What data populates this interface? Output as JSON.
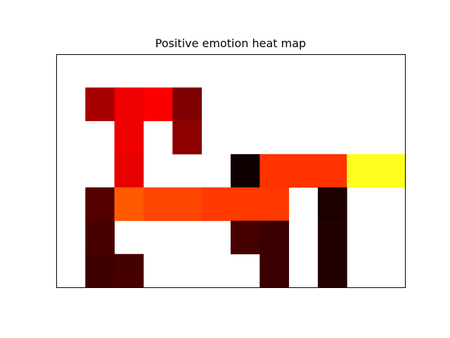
{
  "chart_data": {
    "type": "heatmap",
    "title": "Positive emotion heat map",
    "xlabel": "",
    "ylabel": "",
    "show_axes_ticks": false,
    "grid": false,
    "colormap": "hot",
    "rows": 7,
    "cols": 12,
    "value_range": [
      0,
      1
    ],
    "cells": [
      [
        null,
        null,
        null,
        null,
        null,
        null,
        null,
        null,
        null,
        null,
        null,
        null
      ],
      [
        null,
        0.24,
        0.34,
        0.36,
        0.18,
        null,
        null,
        null,
        null,
        null,
        null,
        null
      ],
      [
        null,
        null,
        0.34,
        null,
        0.2,
        null,
        null,
        null,
        null,
        null,
        null,
        null
      ],
      [
        null,
        null,
        0.33,
        null,
        null,
        null,
        0.02,
        0.44,
        0.44,
        0.44,
        1.0,
        1.0
      ],
      [
        null,
        0.12,
        0.5,
        0.47,
        0.47,
        0.45,
        0.45,
        0.45,
        null,
        0.04,
        null,
        null
      ],
      [
        null,
        0.1,
        null,
        null,
        null,
        null,
        0.1,
        0.08,
        null,
        0.05,
        null,
        null
      ],
      [
        null,
        0.09,
        0.1,
        null,
        null,
        null,
        null,
        0.08,
        null,
        0.05,
        null,
        null
      ]
    ]
  }
}
